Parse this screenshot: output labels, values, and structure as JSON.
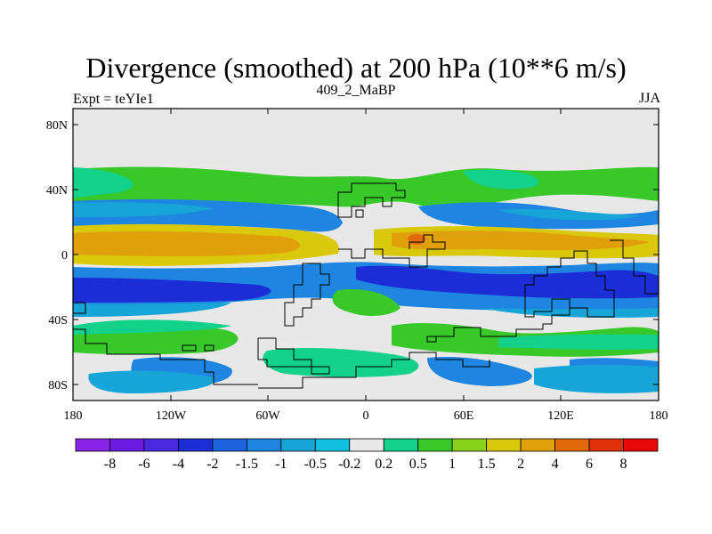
{
  "title": "Divergence (smoothed) at 200 hPa (10**6 m/s)",
  "left_label": "Expt = teYIe1",
  "center_label": "409_2_MaBP",
  "right_label": "JJA",
  "map": {
    "lat_ticks": [
      "80N",
      "40N",
      "0",
      "40S",
      "80S"
    ],
    "lon_ticks": [
      "180",
      "120W",
      "60W",
      "0",
      "60E",
      "120E",
      "180"
    ],
    "background_color": "#e8e8e8"
  },
  "colorbar": {
    "labels": [
      "-8",
      "-6",
      "-4",
      "-2",
      "-1.5",
      "-1",
      "-0.5",
      "-0.2",
      "0.2",
      "0.5",
      "1",
      "1.5",
      "2",
      "4",
      "6",
      "8"
    ],
    "colors": [
      "#8a21e6",
      "#6a1de0",
      "#4a2ae0",
      "#1b2ed6",
      "#1f62e0",
      "#1e86e0",
      "#17a5d8",
      "#12bfe0",
      "#e8e8e8",
      "#13d08a",
      "#38c82a",
      "#8ad21c",
      "#d9c80c",
      "#e0a00c",
      "#e06a0a",
      "#e0300a",
      "#e80a0a"
    ]
  }
}
